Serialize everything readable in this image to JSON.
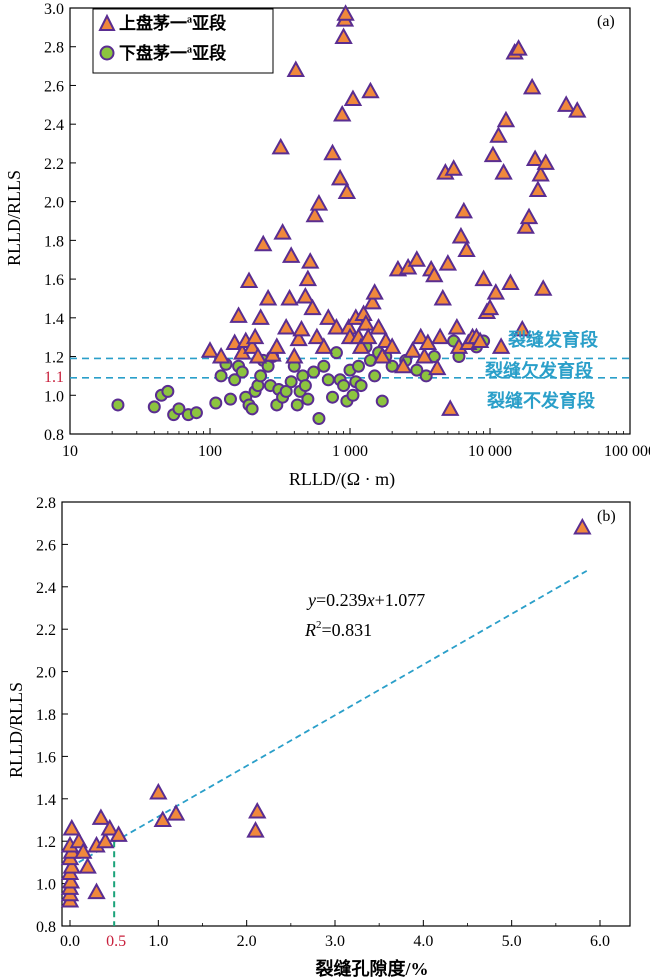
{
  "colors": {
    "triangle_fill": "#f0883c",
    "triangle_stroke": "#5a2d91",
    "circle_fill": "#8cc43f",
    "circle_stroke": "#5a2d91",
    "guide_line": "#2a9fc9",
    "zone_text": "#2a9fc9",
    "highlight_text": "#c8203c",
    "cutoff_line": "#1aa37a",
    "axis": "#000000"
  },
  "chart_data": [
    {
      "type": "scatter",
      "panel_label": "(a)",
      "xlabel": "RLLD/(Ω · m)",
      "ylabel": "RLLD/RLLS",
      "xscale": "log",
      "xlim": [
        10,
        100000
      ],
      "ylim": [
        0.8,
        3.0
      ],
      "xticks": [
        10,
        100,
        1000,
        10000,
        100000
      ],
      "xtick_labels": [
        "10",
        "100",
        "1 000",
        "10 000",
        "100 000"
      ],
      "yticks": [
        0.8,
        1.0,
        1.2,
        1.4,
        1.6,
        1.8,
        2.0,
        2.2,
        2.4,
        2.6,
        2.8,
        3.0
      ],
      "ytick_labels": [
        "0.8",
        "1.0",
        "1.2",
        "1.4",
        "1.6",
        "1.8",
        "2.0",
        "2.2",
        "2.4",
        "2.6",
        "2.8",
        "3.0"
      ],
      "highlight_ytick": "1.1",
      "highlight_ytick_value": 1.1,
      "legend_position": "top-left",
      "hlines": [
        1.19,
        1.09
      ],
      "zones": [
        "裂缝发育段",
        "裂缝欠发育段",
        "裂缝不发育段"
      ],
      "series": [
        {
          "name": "上盘茅一ª亚段",
          "marker": "triangle",
          "points": [
            [
              100,
              1.23
            ],
            [
              120,
              1.2
            ],
            [
              150,
              1.27
            ],
            [
              160,
              1.41
            ],
            [
              170,
              1.22
            ],
            [
              180,
              1.28
            ],
            [
              190,
              1.59
            ],
            [
              200,
              1.25
            ],
            [
              210,
              1.3
            ],
            [
              220,
              1.2
            ],
            [
              230,
              1.4
            ],
            [
              240,
              1.78
            ],
            [
              260,
              1.5
            ],
            [
              280,
              1.21
            ],
            [
              300,
              1.25
            ],
            [
              320,
              2.28
            ],
            [
              330,
              1.84
            ],
            [
              350,
              1.35
            ],
            [
              370,
              1.5
            ],
            [
              380,
              1.72
            ],
            [
              400,
              1.2
            ],
            [
              410,
              2.68
            ],
            [
              430,
              1.29
            ],
            [
              450,
              1.34
            ],
            [
              480,
              1.51
            ],
            [
              500,
              1.6
            ],
            [
              520,
              1.69
            ],
            [
              540,
              1.45
            ],
            [
              560,
              1.93
            ],
            [
              580,
              1.3
            ],
            [
              600,
              1.99
            ],
            [
              650,
              1.25
            ],
            [
              700,
              1.4
            ],
            [
              750,
              2.25
            ],
            [
              800,
              1.35
            ],
            [
              850,
              2.12
            ],
            [
              880,
              2.45
            ],
            [
              900,
              2.85
            ],
            [
              920,
              2.94
            ],
            [
              930,
              2.97
            ],
            [
              950,
              2.05
            ],
            [
              980,
              1.35
            ],
            [
              1000,
              1.3
            ],
            [
              1050,
              2.53
            ],
            [
              1100,
              1.4
            ],
            [
              1150,
              1.3
            ],
            [
              1200,
              1.25
            ],
            [
              1250,
              1.42
            ],
            [
              1300,
              1.37
            ],
            [
              1350,
              1.3
            ],
            [
              1400,
              2.57
            ],
            [
              1450,
              1.48
            ],
            [
              1500,
              1.53
            ],
            [
              1600,
              1.35
            ],
            [
              1700,
              1.2
            ],
            [
              1800,
              1.28
            ],
            [
              2000,
              1.25
            ],
            [
              2200,
              1.65
            ],
            [
              2400,
              1.15
            ],
            [
              2600,
              1.66
            ],
            [
              2800,
              1.23
            ],
            [
              3000,
              1.7
            ],
            [
              3200,
              1.3
            ],
            [
              3400,
              1.2
            ],
            [
              3600,
              1.27
            ],
            [
              3800,
              1.65
            ],
            [
              4000,
              1.62
            ],
            [
              4200,
              1.14
            ],
            [
              4400,
              1.3
            ],
            [
              4600,
              1.5
            ],
            [
              4800,
              2.15
            ],
            [
              5000,
              1.68
            ],
            [
              5200,
              0.93
            ],
            [
              5500,
              2.17
            ],
            [
              5800,
              1.35
            ],
            [
              6000,
              1.25
            ],
            [
              6200,
              1.82
            ],
            [
              6500,
              1.95
            ],
            [
              6800,
              1.75
            ],
            [
              7000,
              1.27
            ],
            [
              7500,
              1.3
            ],
            [
              8000,
              1.3
            ],
            [
              8500,
              1.28
            ],
            [
              9000,
              1.6
            ],
            [
              9500,
              1.43
            ],
            [
              10000,
              1.45
            ],
            [
              10500,
              2.24
            ],
            [
              11000,
              1.53
            ],
            [
              11500,
              2.34
            ],
            [
              12000,
              1.25
            ],
            [
              12500,
              2.15
            ],
            [
              13000,
              2.42
            ],
            [
              14000,
              1.58
            ],
            [
              15000,
              2.77
            ],
            [
              16000,
              2.79
            ],
            [
              17000,
              1.34
            ],
            [
              18000,
              1.87
            ],
            [
              19000,
              1.92
            ],
            [
              20000,
              2.59
            ],
            [
              21000,
              2.22
            ],
            [
              22000,
              2.06
            ],
            [
              23000,
              2.14
            ],
            [
              24000,
              1.55
            ],
            [
              25000,
              2.2
            ],
            [
              35000,
              2.5
            ],
            [
              42000,
              2.47
            ]
          ]
        },
        {
          "name": "下盘茅一ª亚段",
          "marker": "circle",
          "points": [
            [
              22,
              0.95
            ],
            [
              40,
              0.94
            ],
            [
              45,
              1.0
            ],
            [
              50,
              1.02
            ],
            [
              55,
              0.9
            ],
            [
              60,
              0.93
            ],
            [
              70,
              0.9
            ],
            [
              80,
              0.91
            ],
            [
              110,
              0.96
            ],
            [
              120,
              1.1
            ],
            [
              130,
              1.16
            ],
            [
              140,
              0.98
            ],
            [
              150,
              1.08
            ],
            [
              160,
              1.15
            ],
            [
              170,
              1.12
            ],
            [
              180,
              0.99
            ],
            [
              190,
              0.95
            ],
            [
              200,
              0.93
            ],
            [
              210,
              1.02
            ],
            [
              220,
              1.05
            ],
            [
              230,
              1.1
            ],
            [
              240,
              1.18
            ],
            [
              260,
              1.15
            ],
            [
              270,
              1.05
            ],
            [
              280,
              1.2
            ],
            [
              300,
              0.95
            ],
            [
              310,
              1.03
            ],
            [
              330,
              0.99
            ],
            [
              350,
              1.02
            ],
            [
              380,
              1.07
            ],
            [
              400,
              1.15
            ],
            [
              420,
              0.95
            ],
            [
              440,
              1.02
            ],
            [
              460,
              1.1
            ],
            [
              480,
              1.05
            ],
            [
              500,
              0.98
            ],
            [
              550,
              1.12
            ],
            [
              600,
              0.88
            ],
            [
              650,
              1.15
            ],
            [
              700,
              1.08
            ],
            [
              750,
              0.99
            ],
            [
              800,
              1.22
            ],
            [
              850,
              1.08
            ],
            [
              900,
              1.05
            ],
            [
              950,
              0.97
            ],
            [
              1000,
              1.13
            ],
            [
              1050,
              1.0
            ],
            [
              1100,
              1.07
            ],
            [
              1150,
              1.15
            ],
            [
              1200,
              1.05
            ],
            [
              1300,
              1.25
            ],
            [
              1400,
              1.18
            ],
            [
              1500,
              1.1
            ],
            [
              1600,
              1.22
            ],
            [
              1700,
              0.97
            ],
            [
              1800,
              1.2
            ],
            [
              2000,
              1.15
            ],
            [
              2500,
              1.18
            ],
            [
              3000,
              1.13
            ],
            [
              3500,
              1.1
            ],
            [
              4000,
              1.2
            ],
            [
              5500,
              1.28
            ],
            [
              6000,
              1.2
            ],
            [
              8000,
              1.25
            ],
            [
              9000,
              1.28
            ]
          ]
        }
      ]
    },
    {
      "type": "scatter",
      "panel_label": "(b)",
      "xlabel": "裂缝孔隙度/%",
      "ylabel": "RLLD/RLLS",
      "xlim": [
        0,
        6.5
      ],
      "ylim": [
        0.8,
        2.8
      ],
      "xticks": [
        0,
        1,
        2,
        3,
        4,
        5,
        6
      ],
      "xtick_labels": [
        "0.0",
        "1.0",
        "2.0",
        "3.0",
        "4.0",
        "5.0",
        "6.0"
      ],
      "yticks": [
        0.8,
        1.0,
        1.2,
        1.4,
        1.6,
        1.8,
        2.0,
        2.2,
        2.4,
        2.6,
        2.8
      ],
      "ytick_labels": [
        "0.8",
        "1.0",
        "1.2",
        "1.4",
        "1.6",
        "1.8",
        "2.0",
        "2.2",
        "2.4",
        "2.6",
        "2.8"
      ],
      "highlight_xtick": "0.5",
      "highlight_xtick_value": 0.5,
      "cutoff_y": 1.2,
      "equation_prefix": "y",
      "equation_text": "=0.239",
      "equation_x": "x",
      "equation_suffix": "+1.077",
      "r2_prefix": "R",
      "r2_sup": "2",
      "r2_text": "=0.831",
      "fit_line": {
        "slope": 0.239,
        "intercept": 1.077,
        "x_range": [
          0,
          5.85
        ]
      },
      "series": [
        {
          "name": "",
          "marker": "triangle",
          "points": [
            [
              0.0,
              0.92
            ],
            [
              0.0,
              0.95
            ],
            [
              0.0,
              0.98
            ],
            [
              0.01,
              1.01
            ],
            [
              0.0,
              1.05
            ],
            [
              0.02,
              1.08
            ],
            [
              0.0,
              1.12
            ],
            [
              0.02,
              1.15
            ],
            [
              0.0,
              1.18
            ],
            [
              0.02,
              1.26
            ],
            [
              0.1,
              1.2
            ],
            [
              0.15,
              1.15
            ],
            [
              0.2,
              1.08
            ],
            [
              0.3,
              1.18
            ],
            [
              0.4,
              1.2
            ],
            [
              0.3,
              0.96
            ],
            [
              0.35,
              1.31
            ],
            [
              0.45,
              1.26
            ],
            [
              0.55,
              1.23
            ],
            [
              1.0,
              1.43
            ],
            [
              1.05,
              1.3
            ],
            [
              1.2,
              1.33
            ],
            [
              2.1,
              1.25
            ],
            [
              2.12,
              1.34
            ],
            [
              5.8,
              2.68
            ]
          ]
        }
      ]
    }
  ]
}
